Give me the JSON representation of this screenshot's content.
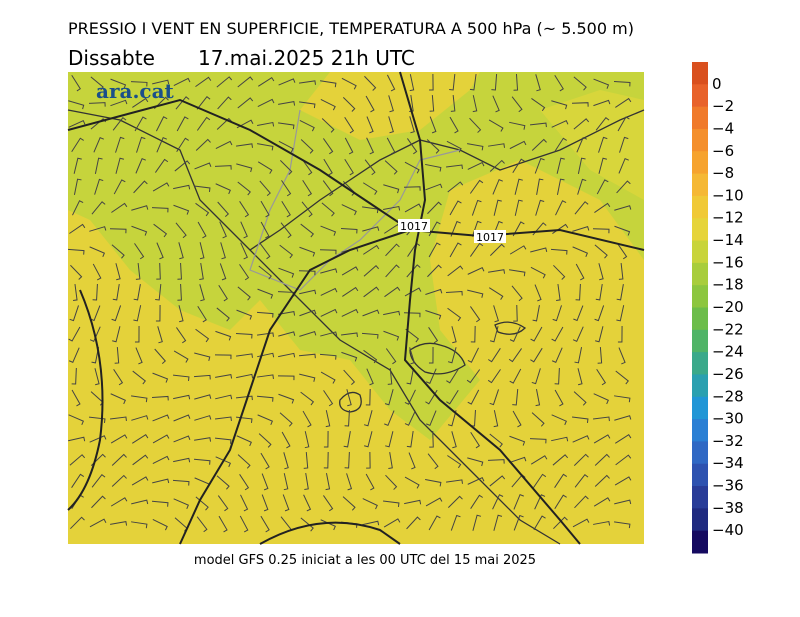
{
  "header": {
    "title": "PRESSIO I VENT EN SUPERFICIE, TEMPERATURA A 500 hPa (~ 5.500 m)",
    "day": "Dissabte",
    "datetime": "17.mai.2025 21h UTC"
  },
  "logo": "ara.cat",
  "isobar_labels": [
    "1017",
    "1017"
  ],
  "footer": "model GFS 0.25 iniciat a les 00 UTC del 15 mai 2025",
  "colorbar": {
    "labels": [
      "0",
      "−2",
      "−4",
      "−6",
      "−8",
      "−10",
      "−12",
      "−14",
      "−16",
      "−18",
      "−20",
      "−22",
      "−24",
      "−26",
      "−28",
      "−30",
      "−32",
      "−34",
      "−36",
      "−38",
      "−40"
    ],
    "colors": [
      "#d9501e",
      "#e8622a",
      "#f07a2a",
      "#f48f2c",
      "#f6a32e",
      "#f5b834",
      "#f0c936",
      "#e6d43a",
      "#c8d43b",
      "#a8cd3c",
      "#8cc63f",
      "#6cbd4a",
      "#4fb467",
      "#3aa98a",
      "#2aa0b0",
      "#2196d6",
      "#2a7fd4",
      "#2f68c4",
      "#2d52b0",
      "#283c98",
      "#1f2a80",
      "#150a60"
    ]
  }
}
